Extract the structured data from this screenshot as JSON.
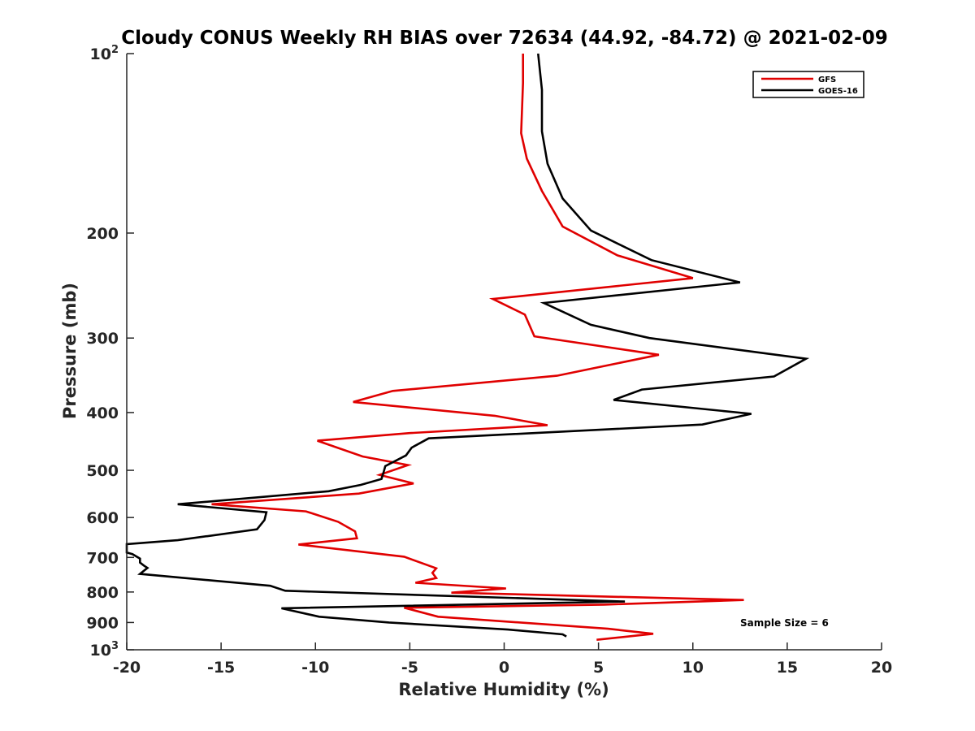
{
  "chart_data": {
    "type": "line",
    "title": "Cloudy CONUS Weekly RH BIAS over 72634 (44.92, -84.72) @ 2021-02-09",
    "xlabel": "Relative Humidity (%)",
    "ylabel": "Pressure (mb)",
    "xlim": [
      -20,
      20
    ],
    "ylim": [
      100,
      1000
    ],
    "yscale": "log",
    "y_reversed": true,
    "grid": false,
    "legend_position": "top-right",
    "x_ticks": [
      "-20",
      "-15",
      "-10",
      "-5",
      "0",
      "5",
      "10",
      "15",
      "20"
    ],
    "y_ticks": [
      {
        "value": 100,
        "base": "10",
        "exp": "2"
      },
      {
        "value": 200,
        "label": "200"
      },
      {
        "value": 300,
        "label": "300"
      },
      {
        "value": 400,
        "label": "400"
      },
      {
        "value": 500,
        "label": "500"
      },
      {
        "value": 600,
        "label": "600"
      },
      {
        "value": 700,
        "label": "700"
      },
      {
        "value": 800,
        "label": "800"
      },
      {
        "value": 900,
        "label": "900"
      },
      {
        "value": 1000,
        "base": "10",
        "exp": "3"
      }
    ],
    "series": [
      {
        "name": "GFS",
        "color": "#e00000",
        "points": [
          [
            1.0,
            100
          ],
          [
            1.0,
            112
          ],
          [
            0.9,
            136
          ],
          [
            1.2,
            150
          ],
          [
            2.0,
            170
          ],
          [
            3.1,
            195
          ],
          [
            6.0,
            218
          ],
          [
            10.0,
            238
          ],
          [
            -0.6,
            258
          ],
          [
            1.1,
            274
          ],
          [
            1.6,
            298
          ],
          [
            8.2,
            320
          ],
          [
            2.8,
            347
          ],
          [
            -5.9,
            368
          ],
          [
            -8.0,
            384
          ],
          [
            -0.5,
            405
          ],
          [
            2.3,
            420
          ],
          [
            -5.0,
            433
          ],
          [
            -9.9,
            446
          ],
          [
            -7.5,
            474
          ],
          [
            -5.1,
            490
          ],
          [
            -6.6,
            509
          ],
          [
            -4.8,
            526
          ],
          [
            -7.7,
            547
          ],
          [
            -15.5,
            570
          ],
          [
            -10.5,
            586
          ],
          [
            -8.8,
            610
          ],
          [
            -7.9,
            633
          ],
          [
            -7.8,
            650
          ],
          [
            -10.9,
            666
          ],
          [
            -5.3,
            698
          ],
          [
            -3.6,
            730
          ],
          [
            -3.8,
            743
          ],
          [
            -3.6,
            758
          ],
          [
            -4.7,
            772
          ],
          [
            0.1,
            789
          ],
          [
            -2.8,
            802
          ],
          [
            12.7,
            825
          ],
          [
            5.3,
            840
          ],
          [
            -5.3,
            850
          ],
          [
            -3.5,
            880
          ],
          [
            5.5,
            922
          ],
          [
            7.9,
            940
          ],
          [
            4.9,
            962
          ]
        ]
      },
      {
        "name": "GOES-16",
        "color": "#000000",
        "points": [
          [
            1.8,
            100
          ],
          [
            2.0,
            115
          ],
          [
            2.0,
            135
          ],
          [
            2.3,
            153
          ],
          [
            3.1,
            175
          ],
          [
            4.6,
            198
          ],
          [
            7.8,
            222
          ],
          [
            12.5,
            242
          ],
          [
            2.1,
            262
          ],
          [
            4.6,
            285
          ],
          [
            7.7,
            300
          ],
          [
            16.0,
            325
          ],
          [
            14.3,
            348
          ],
          [
            7.3,
            366
          ],
          [
            5.8,
            381
          ],
          [
            13.1,
            402
          ],
          [
            10.5,
            419
          ],
          [
            -4.0,
            442
          ],
          [
            -4.9,
            458
          ],
          [
            -5.2,
            472
          ],
          [
            -6.3,
            492
          ],
          [
            -6.4,
            505
          ],
          [
            -6.5,
            517
          ],
          [
            -7.6,
            529
          ],
          [
            -9.3,
            542
          ],
          [
            -17.3,
            570
          ],
          [
            -12.6,
            588
          ],
          [
            -12.7,
            606
          ],
          [
            -13.1,
            628
          ],
          [
            -17.3,
            655
          ],
          [
            -20.0,
            665
          ],
          [
            -20.0,
            687
          ],
          [
            -19.7,
            691
          ],
          [
            -19.3,
            703
          ],
          [
            -19.3,
            714
          ],
          [
            -19.1,
            722
          ],
          [
            -18.9,
            729
          ],
          [
            -19.3,
            746
          ],
          [
            -12.4,
            781
          ],
          [
            -11.6,
            796
          ],
          [
            6.4,
            830
          ],
          [
            -11.8,
            852
          ],
          [
            -9.8,
            880
          ],
          [
            -6.1,
            900
          ],
          [
            0.2,
            925
          ],
          [
            3.1,
            942
          ],
          [
            3.3,
            950
          ]
        ]
      }
    ],
    "annotations": [
      "Sample Size = 6"
    ]
  }
}
